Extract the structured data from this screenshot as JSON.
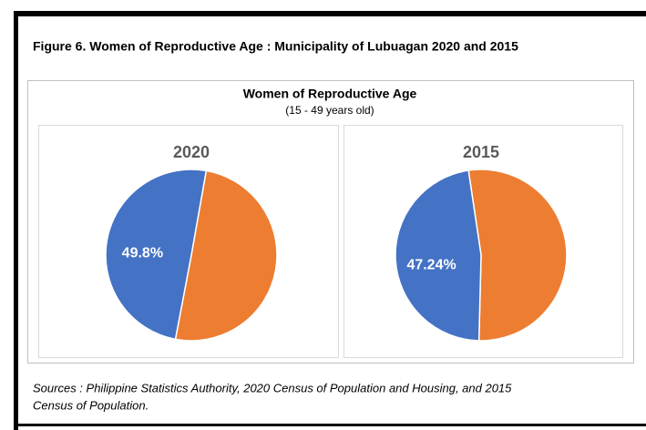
{
  "figure_caption": "Figure 6. Women of Reproductive Age : Municipality of Lubuagan  2020 and 2015",
  "title": "Women of Reproductive Age",
  "subtitle": "(15 - 49 years old)",
  "sources": [
    "Sources : Philippine Statistics Authority, 2020 Census of Population and Housing, and 2015",
    "Census of Population."
  ],
  "chart_data": [
    {
      "type": "pie",
      "title": "2020",
      "values": [
        49.8,
        50.2
      ],
      "value_labels": [
        "49.8%",
        null
      ],
      "colors": [
        "#4472c4",
        "#ed7d31"
      ]
    },
    {
      "type": "pie",
      "title": "2015",
      "values": [
        47.24,
        52.76
      ],
      "value_labels": [
        "47.24%",
        null
      ],
      "colors": [
        "#4472c4",
        "#ed7d31"
      ]
    }
  ]
}
